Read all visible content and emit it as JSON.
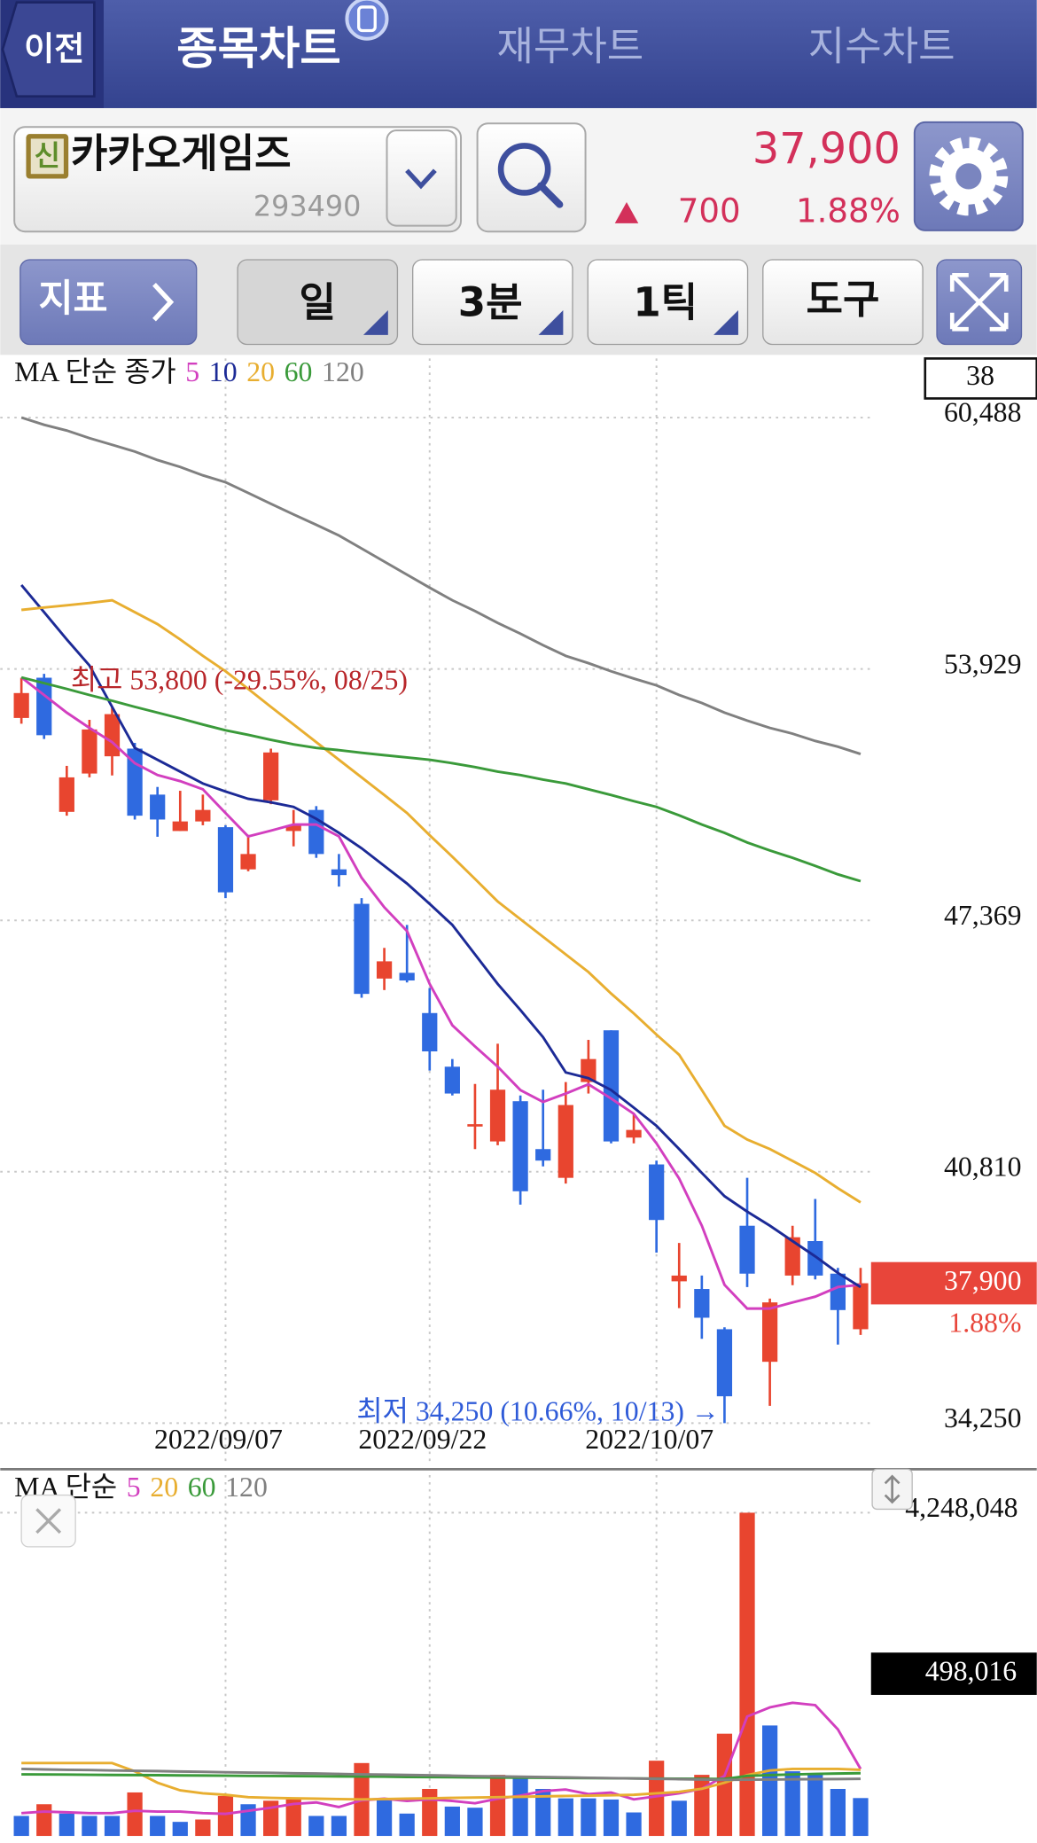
{
  "header": {
    "back": "이전",
    "tabs": [
      "종목차트",
      "재무차트",
      "지수차트"
    ]
  },
  "stock": {
    "badge": "신",
    "name": "카카오게임즈",
    "code": "293490",
    "price": "37,900",
    "change": "700",
    "change_pct": "1.88%"
  },
  "toolbar": {
    "indicator": "지표",
    "buttons": [
      "일",
      "3분",
      "1틱",
      "도구"
    ]
  },
  "chart_data": [
    {
      "type": "candlestick",
      "ma_label": "MA 단순 종가",
      "count": 38,
      "up_color": "#e8452f",
      "down_color": "#2f6ae0",
      "categories": [
        null,
        null,
        null,
        null,
        null,
        null,
        null,
        null,
        null,
        "2022/09/07",
        null,
        null,
        null,
        null,
        null,
        null,
        null,
        null,
        "2022/09/22",
        null,
        null,
        null,
        null,
        null,
        null,
        null,
        null,
        null,
        "2022/10/07",
        null,
        null,
        null,
        null,
        null,
        null,
        null,
        null,
        null
      ],
      "open": [
        52650,
        53700,
        50200,
        51200,
        51650,
        51850,
        50650,
        49700,
        49950,
        49800,
        48700,
        50500,
        49700,
        50250,
        48700,
        47800,
        45850,
        46000,
        44950,
        43550,
        42000,
        41600,
        42650,
        41400,
        40650,
        43150,
        44500,
        41700,
        41000,
        37950,
        37750,
        36700,
        39400,
        35850,
        38100,
        39000,
        38150,
        36700
      ],
      "high": [
        53700,
        53800,
        51400,
        52600,
        52950,
        52000,
        50850,
        50750,
        50650,
        49850,
        49600,
        51850,
        50250,
        50350,
        49100,
        47950,
        46650,
        47250,
        45600,
        43750,
        43100,
        44150,
        42800,
        42950,
        43150,
        44250,
        44500,
        42300,
        41100,
        38950,
        38100,
        36750,
        40650,
        37500,
        39400,
        40100,
        38300,
        38300
      ],
      "low": [
        52500,
        52100,
        50100,
        51100,
        51150,
        50000,
        49550,
        49700,
        49850,
        47950,
        48650,
        50400,
        49300,
        49000,
        48250,
        45350,
        45550,
        45750,
        43450,
        42800,
        41400,
        41500,
        39950,
        40950,
        40500,
        42850,
        41550,
        41550,
        38700,
        37250,
        36450,
        34250,
        37800,
        34700,
        37850,
        38000,
        36300,
        36550
      ],
      "close": [
        53300,
        52200,
        51100,
        52350,
        52750,
        50100,
        50000,
        49950,
        50250,
        48100,
        49100,
        51750,
        49850,
        49100,
        48550,
        45450,
        46300,
        45800,
        43950,
        42850,
        42050,
        42950,
        40300,
        41100,
        42550,
        43750,
        41600,
        41900,
        39550,
        38100,
        37000,
        34950,
        38150,
        37400,
        39100,
        38100,
        37200,
        37900
      ],
      "series": [
        {
          "name": "5",
          "color": "#d23fbf",
          "values": [
            53710,
            53250,
            52790,
            52390,
            52020,
            51470,
            51160,
            51000,
            50790,
            50170,
            49560,
            49710,
            49870,
            49870,
            49560,
            48480,
            47710,
            47090,
            45710,
            44630,
            44080,
            43550,
            42940,
            42630,
            42850,
            43090,
            42720,
            42320,
            41550,
            40630,
            39400,
            37860,
            37240,
            37240,
            37400,
            37550,
            37800,
            37860
          ]
        },
        {
          "name": "10",
          "color": "#1c2a96",
          "values": [
            56120,
            55410,
            54700,
            54020,
            52940,
            51870,
            51560,
            51250,
            50940,
            50730,
            50540,
            50450,
            50330,
            50020,
            49650,
            49250,
            48790,
            48330,
            47800,
            47250,
            46480,
            45710,
            45030,
            44320,
            43400,
            43250,
            42940,
            42480,
            42010,
            41400,
            40780,
            40170,
            39770,
            39400,
            39000,
            38600,
            38170,
            37800
          ]
        },
        {
          "name": "20",
          "color": "#e8ae30",
          "values": [
            55470,
            55530,
            55590,
            55650,
            55720,
            55410,
            55100,
            54700,
            54270,
            53870,
            53410,
            52940,
            52480,
            52020,
            51560,
            51100,
            50640,
            50170,
            49590,
            49030,
            48450,
            47860,
            47400,
            46940,
            46480,
            46020,
            45460,
            44940,
            44390,
            43860,
            42940,
            42010,
            41650,
            41400,
            41090,
            40780,
            40380,
            40010
          ]
        },
        {
          "name": "60",
          "color": "#3a9a3a",
          "values": [
            53710,
            53560,
            53410,
            53250,
            53100,
            52940,
            52790,
            52640,
            52480,
            52330,
            52210,
            52080,
            51960,
            51870,
            51810,
            51740,
            51680,
            51620,
            51560,
            51470,
            51370,
            51250,
            51160,
            51040,
            50940,
            50790,
            50640,
            50480,
            50330,
            50110,
            49870,
            49650,
            49400,
            49190,
            49000,
            48790,
            48570,
            48390
          ]
        },
        {
          "name": "120",
          "color": "#808080",
          "values": [
            60490,
            60300,
            60150,
            59950,
            59780,
            59600,
            59380,
            59200,
            58980,
            58800,
            58520,
            58240,
            57960,
            57690,
            57410,
            57070,
            56730,
            56390,
            56050,
            55720,
            55440,
            55130,
            54850,
            54550,
            54270,
            54080,
            53870,
            53680,
            53500,
            53250,
            53040,
            52790,
            52580,
            52390,
            52240,
            52050,
            51900,
            51710
          ]
        }
      ],
      "ylim": [
        33200,
        62030
      ],
      "yticks": [
        {
          "value": 60488,
          "label": "60,488"
        },
        {
          "value": 53929,
          "label": "53,929"
        },
        {
          "value": 47369,
          "label": "47,369"
        },
        {
          "value": 40810,
          "label": "40,810"
        },
        {
          "value": 34250,
          "label": "34,250"
        }
      ],
      "grid": true,
      "annotations": [
        "최고 53,800 (-29.55%, 08/25)",
        "최저 34,250 (10.66%, 10/13) →"
      ]
    },
    {
      "type": "bar",
      "ma_label": "MA 단순",
      "up_color": "#e8452f",
      "down_color": "#2f6ae0",
      "values": [
        263000,
        417000,
        294000,
        263000,
        263000,
        572000,
        263000,
        185000,
        216000,
        525000,
        417000,
        463000,
        479000,
        263000,
        263000,
        958000,
        494000,
        294000,
        618000,
        386000,
        371000,
        803000,
        772000,
        618000,
        494000,
        494000,
        479000,
        309000,
        989000,
        463000,
        803000,
        1344000,
        4248048,
        1452000,
        850000,
        803000,
        618000,
        498016
      ],
      "last_label": "498,016",
      "series": [
        {
          "name": "5",
          "color": "#d23fbf",
          "values": [
            300000,
            320000,
            310000,
            300000,
            300000,
            330000,
            320000,
            320000,
            300000,
            290000,
            330000,
            370000,
            420000,
            440000,
            380000,
            470000,
            490000,
            460000,
            480000,
            460000,
            430000,
            490000,
            530000,
            590000,
            610000,
            550000,
            570000,
            480000,
            520000,
            560000,
            620000,
            790000,
            1570000,
            1690000,
            1750000,
            1720000,
            1400000,
            880000
          ]
        },
        {
          "name": "20",
          "color": "#e8ae30",
          "values": [
            958000,
            958000,
            958000,
            958000,
            958000,
            850000,
            700000,
            600000,
            560000,
            540000,
            510000,
            500000,
            495000,
            490000,
            485000,
            480000,
            485000,
            490000,
            495000,
            500000,
            505000,
            510000,
            515000,
            520000,
            525000,
            530000,
            535000,
            540000,
            560000,
            580000,
            620000,
            700000,
            800000,
            860000,
            880000,
            880000,
            880000,
            870000
          ]
        },
        {
          "name": "60",
          "color": "#3a9a3a",
          "values": [
            810000,
            808000,
            806000,
            804000,
            802000,
            800000,
            798000,
            796000,
            794000,
            792000,
            790000,
            788000,
            786000,
            784000,
            782000,
            780000,
            778000,
            776000,
            774000,
            772000,
            770000,
            768000,
            766000,
            764000,
            762000,
            760000,
            758000,
            756000,
            754000,
            752000,
            750000,
            748000,
            790000,
            800000,
            808000,
            815000,
            820000,
            825000
          ]
        },
        {
          "name": "120",
          "color": "#808080",
          "values": [
            880000,
            875000,
            870000,
            866000,
            861000,
            856000,
            852000,
            847000,
            843000,
            838000,
            833000,
            829000,
            824000,
            820000,
            815000,
            810000,
            806000,
            801000,
            797000,
            792000,
            787000,
            783000,
            778000,
            774000,
            769000,
            764000,
            760000,
            755000,
            751000,
            746000,
            741000,
            737000,
            740000,
            742000,
            744000,
            746000,
            748000,
            750000
          ]
        }
      ],
      "ylim": [
        0,
        4248048
      ],
      "yticks": [
        {
          "value": 4248048,
          "label": "4,248,048"
        }
      ],
      "grid": true
    }
  ]
}
